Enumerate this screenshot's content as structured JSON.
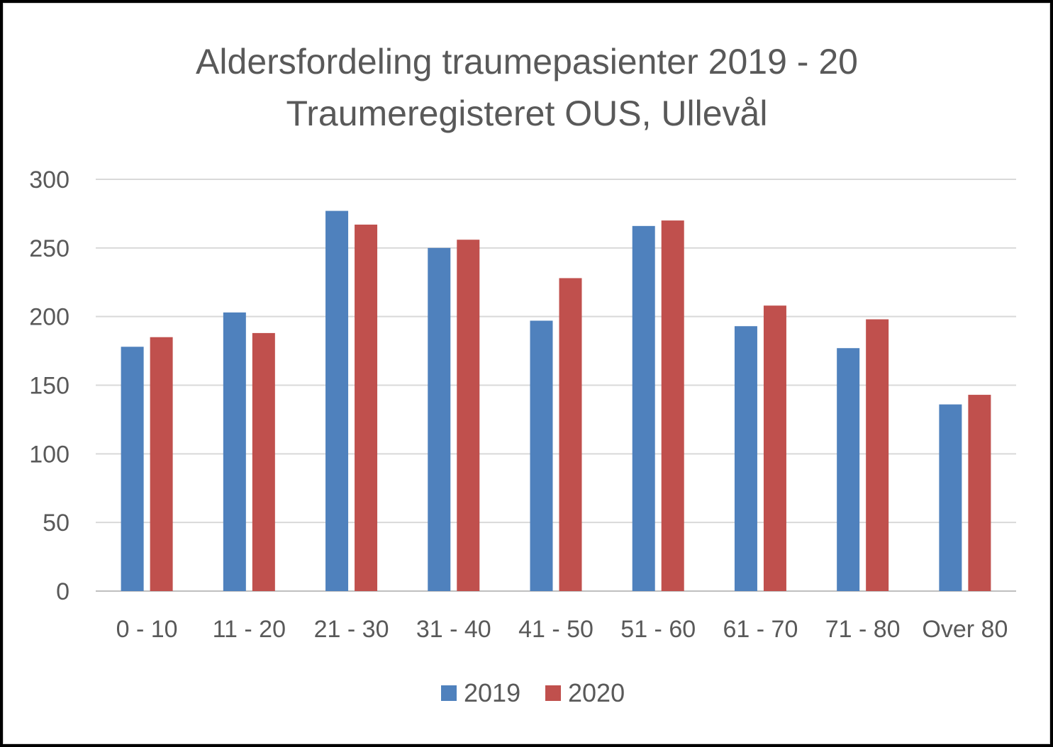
{
  "chart_data": {
    "type": "bar",
    "title": "Aldersfordeling traumepasienter 2019 - 20",
    "subtitle": "Traumeregisteret OUS, Ullevål",
    "xlabel": "",
    "ylabel": "",
    "ylim": [
      0,
      300
    ],
    "yticks": [
      0,
      50,
      100,
      150,
      200,
      250,
      300
    ],
    "grid": true,
    "legend_position": "bottom",
    "categories": [
      "0 - 10",
      "11 - 20",
      "21 - 30",
      "31 - 40",
      "41 - 50",
      "51 - 60",
      "61 - 70",
      "71 - 80",
      "Over 80"
    ],
    "series": [
      {
        "name": "2019",
        "color": "#4f81bd",
        "values": [
          178,
          203,
          277,
          250,
          197,
          266,
          193,
          177,
          136
        ]
      },
      {
        "name": "2020",
        "color": "#c0504d",
        "values": [
          185,
          188,
          267,
          256,
          228,
          270,
          208,
          198,
          143
        ]
      }
    ]
  }
}
